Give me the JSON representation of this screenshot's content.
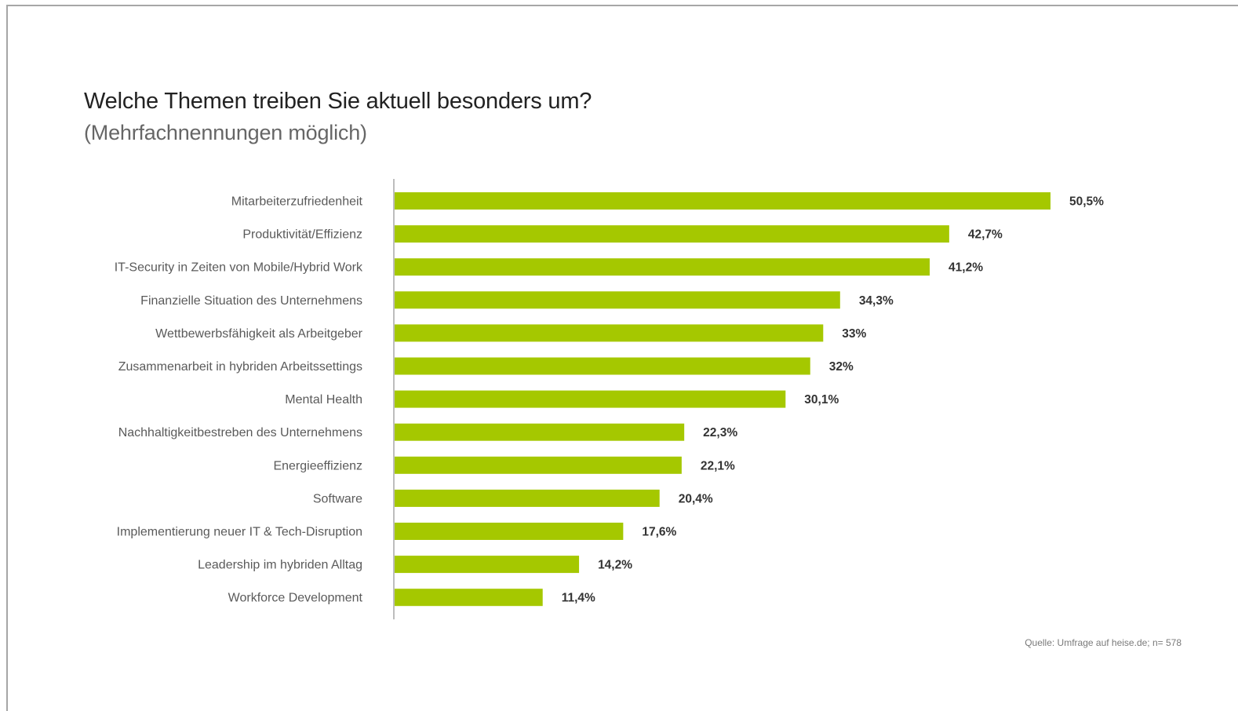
{
  "header": {
    "title": "Welche Themen treiben Sie aktuell besonders um?",
    "subtitle": "(Mehrfachnennungen möglich)"
  },
  "footer": {
    "source": "Quelle: Umfrage auf heise.de; n= 578"
  },
  "colors": {
    "bar": "#a5c800",
    "axis": "#bdbdbd"
  },
  "chart_data": {
    "type": "bar",
    "orientation": "horizontal",
    "title": "Welche Themen treiben Sie aktuell besonders um?",
    "subtitle": "(Mehrfachnennungen möglich)",
    "grid": false,
    "legend": "none",
    "xlim": [
      0,
      55
    ],
    "categories": [
      "Mitarbeiterzufriedenheit",
      "Produktivität/Effizienz",
      "IT-Security in Zeiten von Mobile/Hybrid Work",
      "Finanzielle Situation des Unternehmens",
      "Wettbewerbsfähigkeit als Arbeitgeber",
      "Zusammenarbeit in hybriden Arbeitssettings",
      "Mental Health",
      "Nachhaltigkeitbestreben des Unternehmens",
      "Energieeffizienz",
      "Software",
      "Implementierung neuer IT & Tech-Disruption",
      "Leadership im hybriden Alltag",
      "Workforce Development"
    ],
    "values": [
      50.5,
      42.7,
      41.2,
      34.3,
      33,
      32,
      30.1,
      22.3,
      22.1,
      20.4,
      17.6,
      14.2,
      11.4
    ],
    "value_labels": [
      "50,5%",
      "42,7%",
      "41,2%",
      "34,3%",
      "33%",
      "32%",
      "30,1%",
      "22,3%",
      "22,1%",
      "20,4%",
      "17,6%",
      "14,2%",
      "11,4%"
    ]
  }
}
